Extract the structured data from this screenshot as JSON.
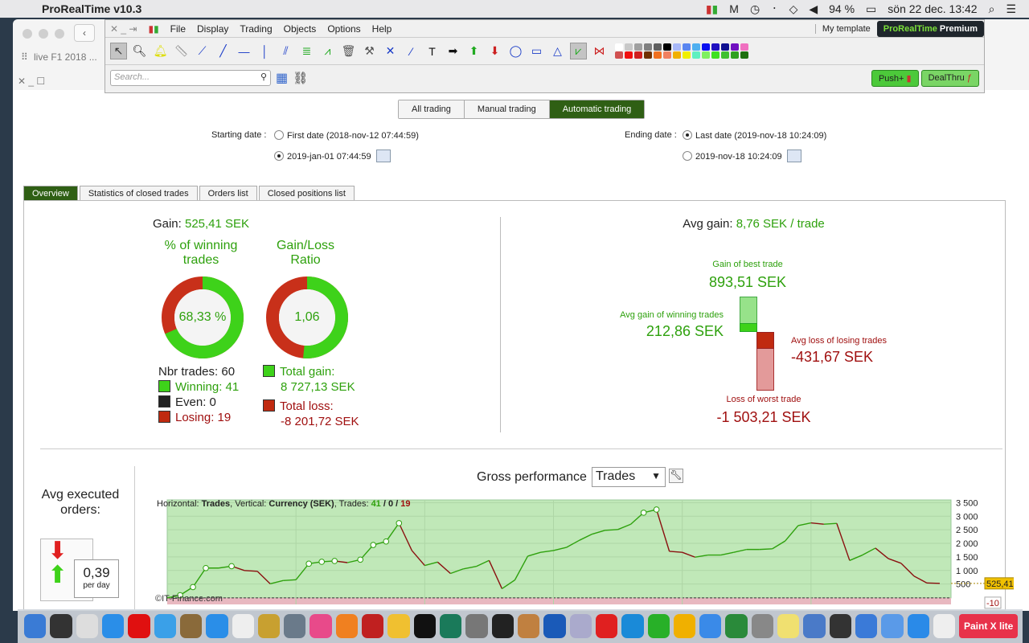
{
  "menubar": {
    "app": "ProRealTime v10.3",
    "battery": "94 %",
    "clock": "sön 22 dec.  13:42"
  },
  "bg": {
    "tab": "live F1 2018 ..."
  },
  "toolwin": {
    "menu": [
      "File",
      "Display",
      "Trading",
      "Objects",
      "Options",
      "Help"
    ],
    "template": "My template",
    "brand_a": "ProRealTime",
    "brand_b": " Premium",
    "search_placeholder": "Search...",
    "push": "Push+",
    "dealthru": "DealThru"
  },
  "palette": [
    "#ffffff",
    "#c8c8c8",
    "#a0a0a0",
    "#808080",
    "#606060",
    "#000000",
    "#a8b8f8",
    "#5a86f0",
    "#50b0f0",
    "#0a10f0",
    "#2010c0",
    "#101090",
    "#7010c0",
    "#f070c0",
    "#d05050",
    "#f01010",
    "#d02020",
    "#703000",
    "#f07020",
    "#f08060",
    "#f0b000",
    "#f0f000",
    "#60f0c0",
    "#80f060",
    "#40e020",
    "#40c030",
    "#30a020",
    "#207010"
  ],
  "modes": [
    "All trading",
    "Manual trading",
    "Automatic trading"
  ],
  "dates": {
    "start_label": "Starting date :",
    "start_opt1": "First date (2018-nov-12 07:44:59)",
    "start_opt2": "2019-jan-01 07:44:59",
    "end_label": "Ending date :",
    "end_opt1": "Last date (2019-nov-18 10:24:09)",
    "end_opt2": "2019-nov-18 10:24:09"
  },
  "tabs": [
    "Overview",
    "Statistics of closed trades",
    "Orders list",
    "Closed positions list"
  ],
  "overview": {
    "gain_label": "Gain: ",
    "gain_value": "525,41 SEK",
    "winpct_title": "% of winning trades",
    "winpct_value": "68,33 %",
    "winpct": 68.33,
    "ratio_title": "Gain/Loss Ratio",
    "ratio_value": "1,06",
    "ratio_fill": 51.5,
    "nbr_trades": "Nbr trades: 60",
    "winning": "Winning: 41",
    "even": "Even: 0",
    "losing": "Losing: 19",
    "total_gain_label": "Total gain:",
    "total_gain": "8 727,13 SEK",
    "total_loss_label": "Total loss:",
    "total_loss": "-8 201,72 SEK",
    "avg_gain_label": "Avg gain: ",
    "avg_gain_value": "8,76 SEK / trade",
    "best_label": "Gain of best trade",
    "best": "893,51 SEK",
    "avgwin_label": "Avg gain of winning trades",
    "avgwin": "212,86 SEK",
    "avgloss_label": "Avg loss of losing trades",
    "avgloss": "-431,67 SEK",
    "worst_label": "Loss of worst trade",
    "worst": "-1 503,21 SEK",
    "avg_exec_label": "Avg executed orders:",
    "avg_exec_value": "0,39",
    "avg_exec_unit": "per day"
  },
  "chart_data": {
    "type": "line",
    "title": "Gross performance",
    "selector": "Trades",
    "header_h": "Horizontal: ",
    "header_h_val": "Trades",
    "header_v": ", Vertical: ",
    "header_v_val": "Currency (SEK)",
    "header_t": ", Trades: ",
    "header_win": "41",
    "header_sep": " / ",
    "header_even": "0",
    "header_lose": "19",
    "watermark": "©IT-Finance.com",
    "ytick_labels": [
      "3 500",
      "3 000",
      "2 500",
      "2 000",
      "1 500",
      "1 000",
      "500"
    ],
    "yticks": [
      3500,
      3000,
      2500,
      2000,
      1500,
      1000,
      500
    ],
    "ylim": [
      -250,
      3600
    ],
    "xlim": [
      0,
      60
    ],
    "last_label": "525,41",
    "min_label": "-10",
    "x": [
      0,
      1,
      2,
      3,
      4,
      5,
      6,
      7,
      8,
      9,
      10,
      11,
      12,
      13,
      14,
      15,
      16,
      17,
      18,
      19,
      20,
      21,
      22,
      23,
      24,
      25,
      26,
      27,
      28,
      29,
      30,
      31,
      32,
      33,
      34,
      35,
      36,
      37,
      38,
      39,
      40,
      41,
      42,
      43,
      44,
      45,
      46,
      47,
      48,
      49,
      50,
      51,
      52,
      53,
      54,
      55,
      56,
      57,
      58,
      59,
      60
    ],
    "y": [
      -10,
      90,
      390,
      1090,
      1090,
      1160,
      1000,
      970,
      510,
      630,
      660,
      1250,
      1320,
      1350,
      1290,
      1400,
      1940,
      2070,
      2745,
      1735,
      1185,
      1310,
      890,
      1060,
      1150,
      1370,
      330,
      650,
      1530,
      1670,
      1735,
      1850,
      2110,
      2340,
      2480,
      2510,
      2705,
      3130,
      3245,
      1705,
      1670,
      1490,
      1570,
      1570,
      1670,
      1775,
      1775,
      1800,
      2090,
      2655,
      2755,
      2705,
      2735,
      1370,
      1570,
      1825,
      1440,
      1265,
      795,
      540,
      525
    ]
  },
  "colors": {
    "accent": "#2f5f14",
    "gain": "#2ea10d",
    "loss": "#a01010"
  }
}
